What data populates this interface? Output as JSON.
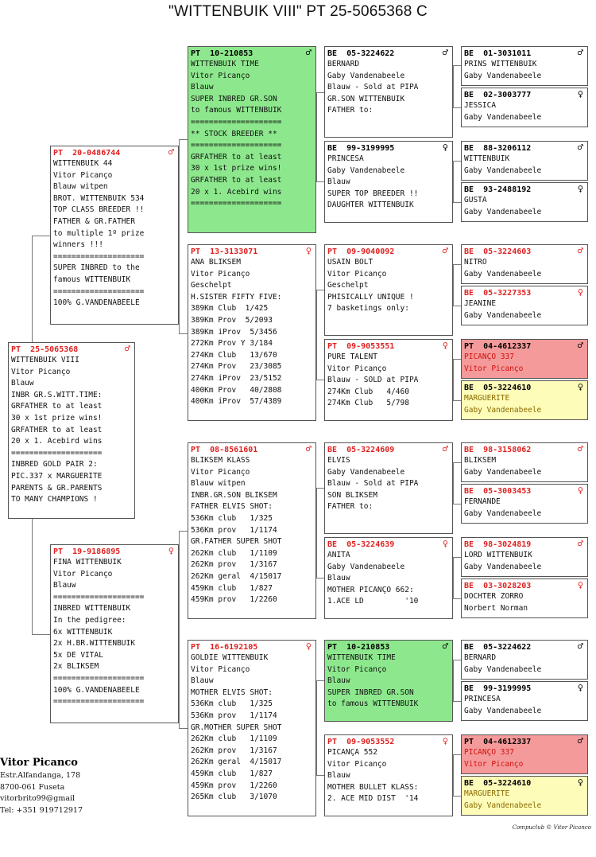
{
  "title": "\"WITTENBUIK VIII\"  PT  25-5065368 C",
  "boxes": {
    "b0": {
      "id": "PT  25-5065368",
      "sex": "♂",
      "lines": [
        "WITTENBUIK VIII",
        "Vitor Picanço",
        "Blauw",
        "INBR GR.S.WITT.TIME:",
        "GRFATHER to at least",
        "30 x 1st prize wins!",
        "GRFATHER to at least",
        "20 x 1. Acebird wins",
        "====================",
        "INBRED GOLD PAIR 2:",
        "PIC.337 x MARGUERITE",
        "PARENTS & GR.PARENTS",
        "TO MANY CHAMPIONS !"
      ]
    },
    "b1": {
      "id": "PT  20-0486744",
      "sex": "♂",
      "lines": [
        "WITTENBUIK 44",
        "Vitor Picanço",
        "Blauw witpen",
        "BROT. WITTENBUIK 534",
        "TOP CLASS BREEDER !!",
        "FATHER & GR.FATHER",
        "to multiple 1º prize",
        "winners !!!",
        "====================",
        "SUPER INBRED to the",
        "famous WITTENBUIK",
        "====================",
        "100% G.VANDENABEELE"
      ]
    },
    "b2": {
      "id": "PT  19-9186895",
      "sex": "♀",
      "lines": [
        "FINA WITTENBUIK",
        "Vitor Picanço",
        "Blauw",
        "====================",
        "INBRED WITTENBUIK",
        "In the pedigree:",
        "6x WITTENBUIK",
        "2x H.BR.WITTENBUIK",
        "5x DE VITAL",
        "2x BLIKSEM",
        "====================",
        "100% G.VANDENABEELE",
        "===================="
      ]
    },
    "b3": {
      "id": "PT  10-210853",
      "sex": "♂",
      "lines": [
        "WITTENBUIK TIME",
        "Vitor Picanço",
        "Blauw",
        "SUPER INBRED GR.SON",
        "to famous WITTENBUIK",
        "====================",
        "** STOCK BREEDER **",
        "====================",
        "GRFATHER to at least",
        "30 x 1st prize wins!",
        "GRFATHER to at least",
        "20 x 1. Acebird wins",
        "===================="
      ]
    },
    "b4": {
      "id": "PT  13-3133071",
      "sex": "♀",
      "lines": [
        "ANA BLIKSEM",
        "Vitor Picanço",
        "Geschelpt",
        "H.SISTER FIFTY FIVE:",
        "389Km Club  1/425",
        "389Km Prov  5/2093",
        "389Km iProv  5/3456",
        "272Km Prov Y 3/184",
        "274Km Club   13/670",
        "274Km Prov   23/3085",
        "274Km iProv  23/5152",
        "400Km Prov   40/2808",
        "400Km iProv  57/4389"
      ]
    },
    "b5": {
      "id": "PT  08-8561601",
      "sex": "♂",
      "lines": [
        "BLIKSEM KLASS",
        "Vitor Picanço",
        "Blauw witpen",
        "INBR.GR.SON BLIKSEM",
        "FATHER ELVIS SHOT:",
        "536Km club   1/325",
        "536Km prov   1/1174",
        "GR.FATHER SUPER SHOT",
        "262Km club   1/1109",
        "262Km prov   1/3167",
        "262Km geral  4/15017",
        "459Km club   1/827",
        "459Km prov   1/2260"
      ]
    },
    "b6": {
      "id": "PT  16-6192105",
      "sex": "♀",
      "lines": [
        "GOLDIE WITTENBUIK",
        "Vitor Picanço",
        "Blauw",
        "MOTHER ELVIS SHOT:",
        "536Km club   1/325",
        "536Km prov   1/1174",
        "GR.MOTHER SUPER SHOT",
        "262Km club   1/1109",
        "262Km prov   1/3167",
        "262Km geral  4/15017",
        "459Km club   1/827",
        "459Km prov   1/2260",
        "265Km club   3/1070"
      ]
    },
    "b7": {
      "id": "BE  05-3224622",
      "sex": "♂",
      "lines": [
        "BERNARD",
        "Gaby Vandenabeele",
        "Blauw - Sold at PIPA",
        "GR.SON WITTENBUIK",
        "FATHER to:"
      ]
    },
    "b8": {
      "id": "BE  99-3199995",
      "sex": "♀",
      "lines": [
        "PRINCESA",
        "Gaby Vandenabeele",
        "Blauw",
        "SUPER TOP BREEDER !!",
        "DAUGHTER WITTENBUIK"
      ]
    },
    "b9": {
      "id": "PT  09-9040092",
      "sex": "♂",
      "lines": [
        "USAIN BOLT",
        "Vitor Picanço",
        "Geschelpt",
        "PHISICALLY UNIQUE !",
        "7 basketings only:"
      ]
    },
    "b10": {
      "id": "PT  09-9053551",
      "sex": "♀",
      "lines": [
        "PURE TALENT",
        "Vitor Picanço",
        "Blauw - SOLD at PIPA",
        "274Km Club   4/460",
        "274Km Club   5/798"
      ]
    },
    "b11": {
      "id": "BE  05-3224609",
      "sex": "♂",
      "lines": [
        "ELVIS",
        "Gaby Vandenabeele",
        "Blauw - Sold at PIPA",
        "SON BLIKSEM",
        "FATHER to:"
      ]
    },
    "b12": {
      "id": "BE  05-3224639",
      "sex": "♀",
      "lines": [
        "ANITA",
        "Gaby Vandenabeele",
        "Blauw",
        "MOTHER PICANÇO 662:",
        "1.ACE LD         '10"
      ]
    },
    "b13": {
      "id": "PT  10-210853",
      "sex": "♂",
      "lines": [
        "WITTENBUIK TIME",
        "Vitor Picanço",
        "Blauw",
        "SUPER INBRED GR.SON",
        "to famous WITTENBUIK"
      ]
    },
    "b14": {
      "id": "PT  09-9053552",
      "sex": "♀",
      "lines": [
        "PICANÇA 552",
        "Vitor Picanço",
        "Blauw",
        "MOTHER BULLET KLASS:",
        "2. ACE MID DIST  '14"
      ]
    },
    "b15": {
      "id": "BE  01-3031011",
      "sex": "♂",
      "lines": [
        "PRINS WITTENBUIK",
        "Gaby Vandenabeele"
      ]
    },
    "b16": {
      "id": "BE  02-3003777",
      "sex": "♀",
      "lines": [
        "JESSICA",
        "Gaby Vandenabeele"
      ]
    },
    "b17": {
      "id": "BE  88-3206112",
      "sex": "♂",
      "lines": [
        "WITTENBUIK",
        "Gaby Vandenabeele"
      ]
    },
    "b18": {
      "id": "BE  93-2488192",
      "sex": "♀",
      "lines": [
        "GUSTA",
        "Gaby Vandenabeele"
      ]
    },
    "b19": {
      "id": "BE  05-3224603",
      "sex": "♂",
      "lines": [
        "NITRO",
        "Gaby Vandenabeele"
      ]
    },
    "b20": {
      "id": "BE  05-3227353",
      "sex": "♀",
      "lines": [
        "JEANINE",
        "Gaby Vandenabeele"
      ]
    },
    "b21": {
      "id": "PT  04-4612337",
      "sex": "♂",
      "lines": [
        "PICANÇO 337",
        "Vitor Picanço"
      ]
    },
    "b22": {
      "id": "BE  05-3224610",
      "sex": "♀",
      "lines": [
        "MARGUERITE",
        "Gaby Vandenabeele"
      ]
    },
    "b23": {
      "id": "BE  98-3158062",
      "sex": "♂",
      "lines": [
        "BLIKSEM",
        "Gaby Vandenabeele"
      ]
    },
    "b24": {
      "id": "BE  05-3003453",
      "sex": "♀",
      "lines": [
        "FERNANDE",
        "Gaby Vandenabeele"
      ]
    },
    "b25": {
      "id": "BE  98-3024819",
      "sex": "♂",
      "lines": [
        "LORD WITTENBUIK",
        "Gaby Vandenabeele"
      ]
    },
    "b26": {
      "id": "BE  03-3028203",
      "sex": "♀",
      "lines": [
        "DOCHTER ZORRO",
        "Norbert Norman"
      ]
    },
    "b27": {
      "id": "BE  05-3224622",
      "sex": "♂",
      "lines": [
        "BERNARD",
        "Gaby Vandenabeele"
      ]
    },
    "b28": {
      "id": "BE  99-3199995",
      "sex": "♀",
      "lines": [
        "PRINCESA",
        "Gaby Vandenabeele"
      ]
    },
    "b29": {
      "id": "PT  04-4612337",
      "sex": "♂",
      "lines": [
        "PICANÇO 337",
        "Vitor Picanço"
      ]
    },
    "b30": {
      "id": "BE  05-3224610",
      "sex": "♀",
      "lines": [
        "MARGUERITE",
        "Gaby Vandenabeele"
      ]
    }
  },
  "breeder": {
    "name": "Vitor Picanco",
    "lines": [
      "Estr.Alfandanga, 178",
      "8700-061 Fuseta",
      "vitorbrito99@gmail",
      "Tel: +351 919712917"
    ]
  },
  "copyright": "Compuclub © Vitor Picanco"
}
